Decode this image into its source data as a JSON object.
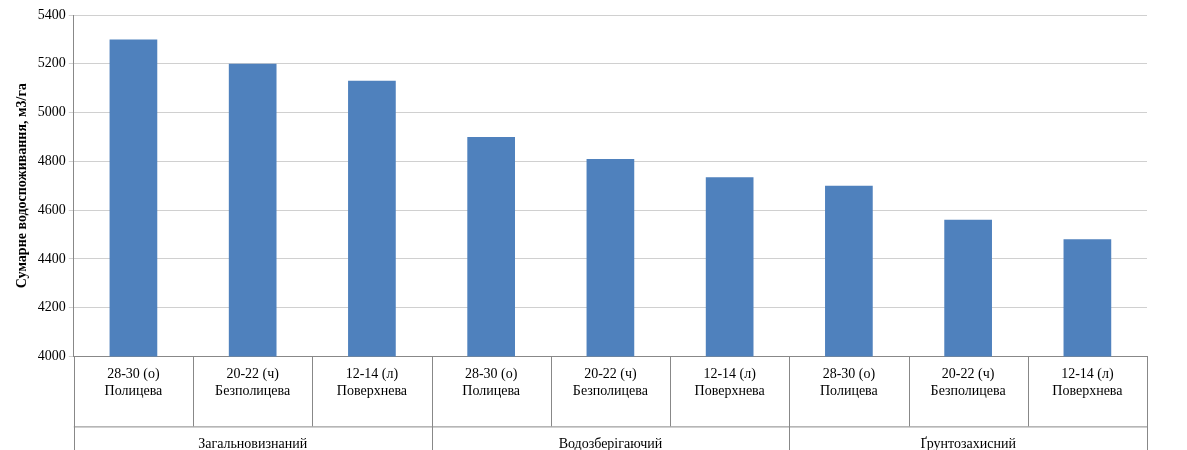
{
  "chart_data": {
    "type": "bar",
    "ylabel": "Сумарне водоспоживання, м3/га",
    "categories": [
      "28-30 (о)\nПолицева",
      "20-22 (ч)\nБезполицева",
      "12-14 (л)\nПоверхнева",
      "28-30 (о)\nПолицева",
      "20-22 (ч)\nБезполицева",
      "12-14 (л)\nПоверхнева",
      "28-30 (о)\nПолицева",
      "20-22 (ч)\nБезполицева",
      "12-14 (л)\nПоверхнева"
    ],
    "values": [
      5300,
      5200,
      5130,
      4900,
      4810,
      4735,
      4700,
      4560,
      4480
    ],
    "color": "#4f81bd",
    "ylim": [
      4000,
      5400
    ],
    "yticks": [
      4000,
      4200,
      4400,
      4600,
      4800,
      5000,
      5200,
      5400
    ],
    "grid": "y",
    "legend": false,
    "annotations": [
      "Загальновизнаний",
      "Водозберігаючий",
      "Ґрунтозахисний"
    ]
  }
}
